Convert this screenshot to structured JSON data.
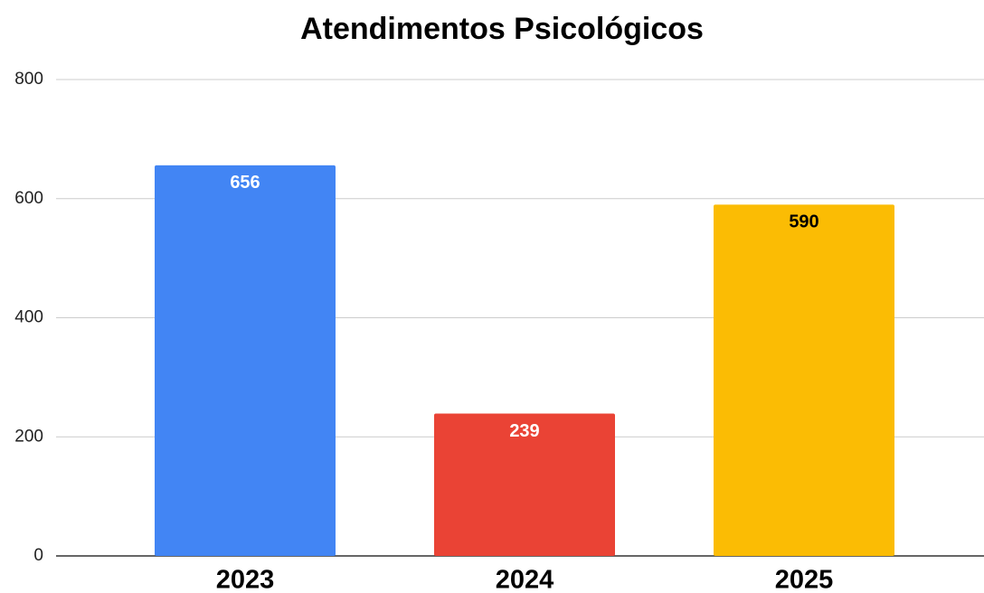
{
  "chart_data": {
    "type": "bar",
    "title": "Atendimentos Psicológicos",
    "categories": [
      "2023",
      "2024",
      "2025"
    ],
    "values": [
      656,
      239,
      590
    ],
    "colors": [
      "#4285f4",
      "#ea4335",
      "#fbbc04"
    ],
    "label_colors": [
      "#ffffff",
      "#ffffff",
      "#000000"
    ],
    "ylim": [
      0,
      800
    ],
    "yticks": [
      0,
      200,
      400,
      600,
      800
    ],
    "grid": true
  }
}
